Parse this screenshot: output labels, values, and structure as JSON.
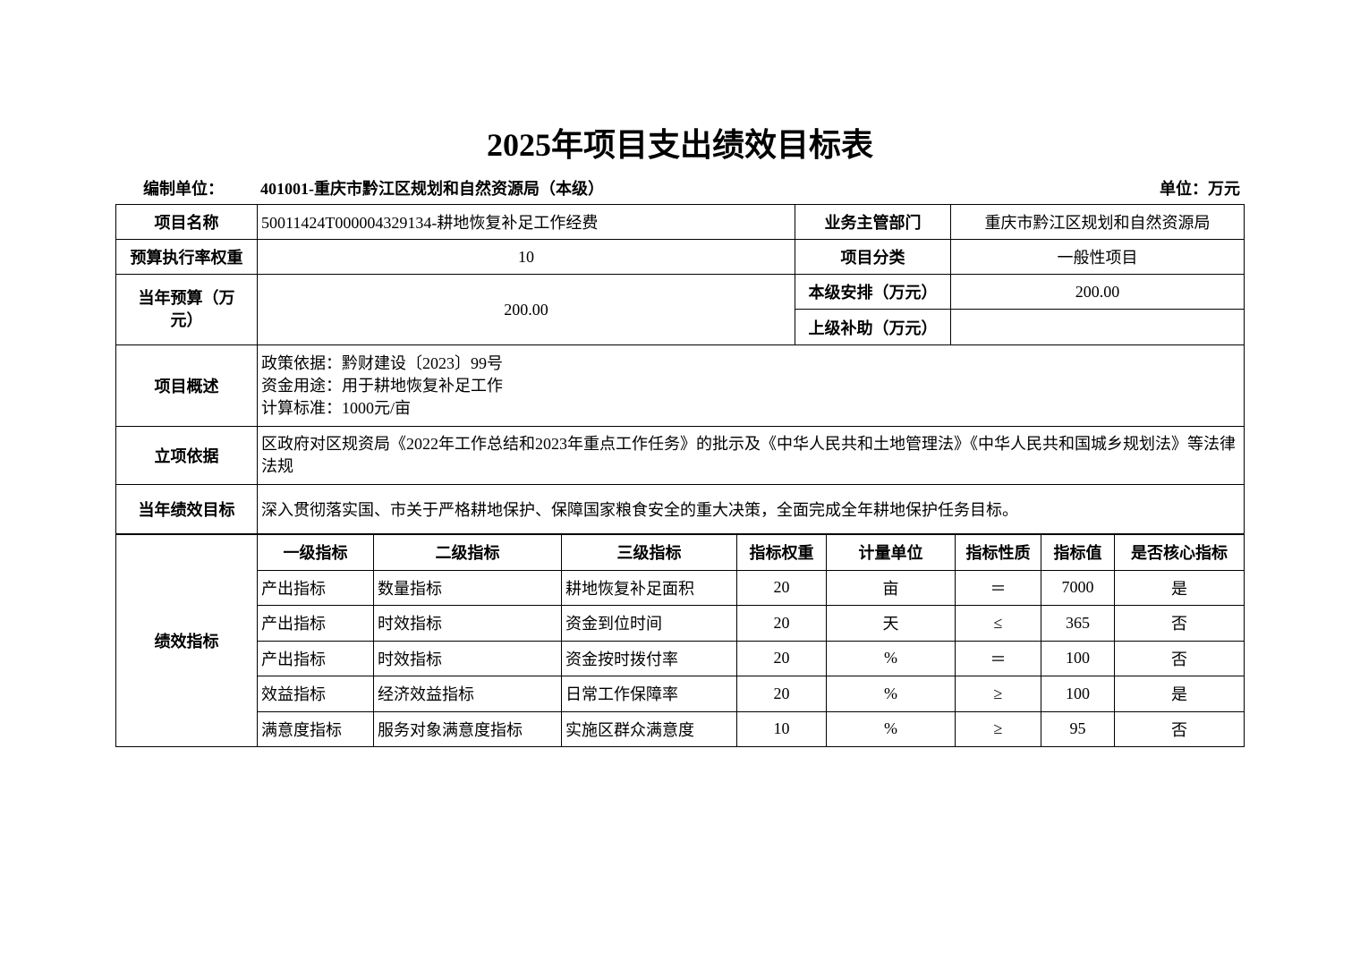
{
  "title": "2025年项目支出绩效目标表",
  "compiler_label": "编制单位：",
  "compiler_value": "401001-重庆市黔江区规划和自然资源局（本级）",
  "unit": "单位：万元",
  "info": {
    "project_name_label": "项目名称",
    "project_name": "50011424T000004329134-耕地恢复补足工作经费",
    "dept_label": "业务主管部门",
    "dept": "重庆市黔江区规划和自然资源局",
    "weight_label": "预算执行率权重",
    "weight": "10",
    "category_label": "项目分类",
    "category": "一般性项目",
    "budget_label": "当年预算（万元）",
    "budget": "200.00",
    "local_label": "本级安排（万元）",
    "local": "200.00",
    "upper_label": "上级补助（万元）",
    "upper": "",
    "overview_label": "项目概述",
    "overview": [
      "政策依据：黔财建设〔2023〕99号",
      "资金用途：用于耕地恢复补足工作",
      "计算标准：1000元/亩"
    ],
    "basis_label": "立项依据",
    "basis": "区政府对区规资局《2022年工作总结和2023年重点工作任务》的批示及《中华人民共和土地管理法》《中华人民共和国城乡规划法》等法律法规",
    "goal_label": "当年绩效目标",
    "goal": "深入贯彻落实国、市关于严格耕地保护、保障国家粮食安全的重大决策，全面完成全年耕地保护任务目标。"
  },
  "indicators": {
    "label": "绩效指标",
    "headers": [
      "一级指标",
      "二级指标",
      "三级指标",
      "指标权重",
      "计量单位",
      "指标性质",
      "指标值",
      "是否核心指标"
    ],
    "rows": [
      [
        "产出指标",
        "数量指标",
        "耕地恢复补足面积",
        "20",
        "亩",
        "＝",
        "7000",
        "是"
      ],
      [
        "产出指标",
        "时效指标",
        "资金到位时间",
        "20",
        "天",
        "≤",
        "365",
        "否"
      ],
      [
        "产出指标",
        "时效指标",
        "资金按时拨付率",
        "20",
        "%",
        "＝",
        "100",
        "否"
      ],
      [
        "效益指标",
        "经济效益指标",
        "日常工作保障率",
        "20",
        "%",
        "≥",
        "100",
        "是"
      ],
      [
        "满意度指标",
        "服务对象满意度指标",
        "实施区群众满意度",
        "10",
        "%",
        "≥",
        "95",
        "否"
      ]
    ]
  }
}
